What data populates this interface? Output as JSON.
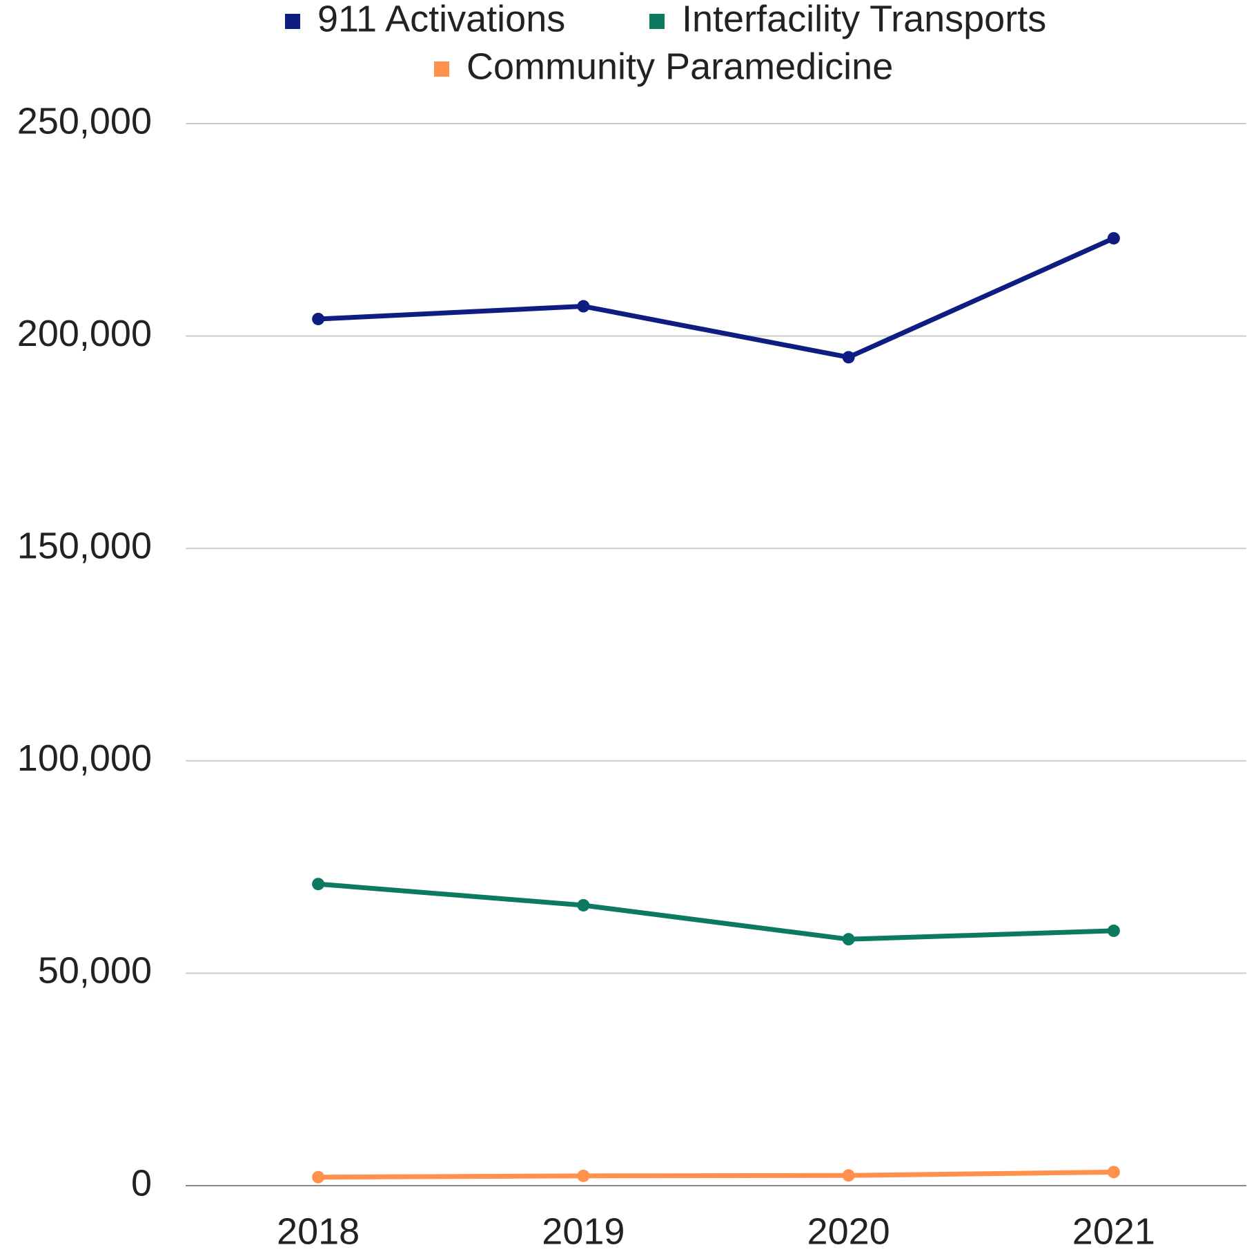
{
  "chart_data": {
    "type": "line",
    "categories": [
      "2018",
      "2019",
      "2020",
      "2021"
    ],
    "series": [
      {
        "name": "911 Activations",
        "color": "#0f1c82",
        "values": [
          204000,
          207000,
          195000,
          223000
        ]
      },
      {
        "name": "Interfacility Transports",
        "color": "#0b7a5e",
        "values": [
          71000,
          66000,
          58000,
          60000
        ]
      },
      {
        "name": "Community Paramedicine",
        "color": "#ff914d",
        "values": [
          2000,
          2300,
          2400,
          3200
        ]
      }
    ],
    "ylim": [
      0,
      250000
    ],
    "yticks": [
      0,
      {
        "value": 50000,
        "label": "50,000"
      },
      {
        "value": 100000,
        "label": "100,000"
      },
      {
        "value": 150000,
        "label": "150,000"
      },
      {
        "value": 200000,
        "label": "200,000"
      },
      {
        "value": 250000,
        "label": "250,000"
      }
    ],
    "grid": true,
    "legend": "top"
  }
}
